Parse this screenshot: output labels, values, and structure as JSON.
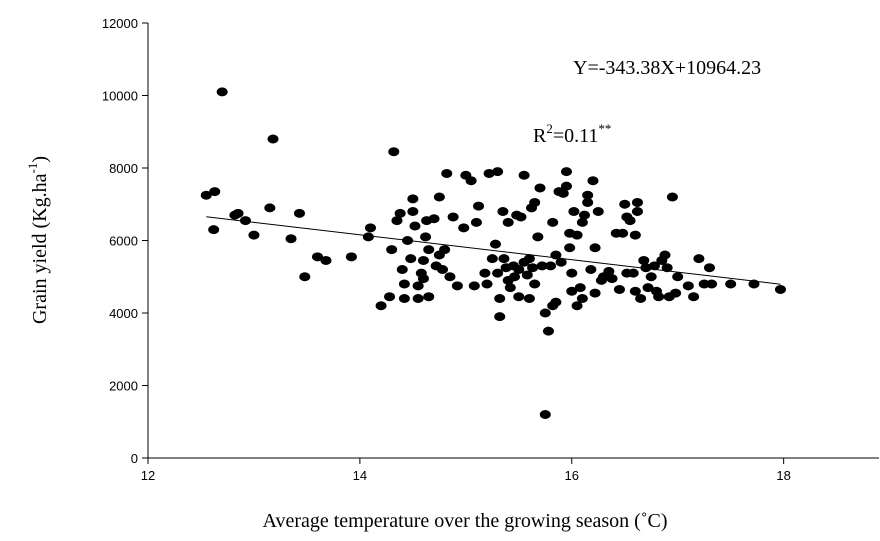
{
  "chart_data": {
    "type": "scatter",
    "equation": "Y=-343.38X+10964.23",
    "r_squared": [
      "R",
      "2",
      "=0.11",
      "**"
    ],
    "y_label": [
      "Grain yield (Kg.ha",
      "-1",
      ")"
    ],
    "x_label": "Average temperature over the growing season (˚C)",
    "color": "#000000",
    "xlim": [
      12,
      18.9
    ],
    "xticks": [
      12,
      14,
      16,
      18
    ],
    "ylim": [
      0,
      12000
    ],
    "yticks": [
      0,
      2000,
      4000,
      6000,
      8000,
      10000,
      12000
    ],
    "x": [
      12.55,
      12.63,
      12.62,
      12.7,
      12.82,
      12.85,
      12.92,
      13.0,
      13.18,
      13.15,
      13.35,
      13.43,
      13.48,
      13.6,
      13.68,
      13.92,
      14.08,
      14.1,
      14.2,
      14.3,
      14.28,
      14.32,
      14.35,
      14.38,
      14.4,
      14.42,
      14.42,
      14.45,
      14.48,
      14.5,
      14.5,
      14.52,
      14.55,
      14.55,
      14.58,
      14.6,
      14.6,
      14.62,
      14.63,
      14.65,
      14.65,
      14.7,
      14.72,
      14.75,
      14.75,
      14.78,
      14.8,
      14.82,
      14.85,
      14.88,
      14.92,
      14.98,
      15.0,
      15.05,
      15.08,
      15.1,
      15.12,
      15.18,
      15.2,
      15.22,
      15.25,
      15.28,
      15.3,
      15.3,
      15.32,
      15.32,
      15.35,
      15.36,
      15.38,
      15.4,
      15.4,
      15.42,
      15.45,
      15.46,
      15.48,
      15.5,
      15.5,
      15.52,
      15.55,
      15.55,
      15.58,
      15.6,
      15.6,
      15.62,
      15.63,
      15.65,
      15.65,
      15.68,
      15.7,
      15.72,
      15.75,
      15.75,
      15.78,
      15.8,
      15.82,
      15.82,
      15.85,
      15.85,
      15.88,
      15.9,
      15.92,
      15.95,
      15.95,
      15.98,
      15.98,
      16.0,
      16.0,
      16.02,
      16.05,
      16.05,
      16.08,
      16.1,
      16.1,
      16.12,
      16.15,
      16.15,
      16.18,
      16.2,
      16.22,
      16.22,
      16.25,
      16.28,
      16.3,
      16.35,
      16.38,
      16.42,
      16.45,
      16.48,
      16.5,
      16.52,
      16.52,
      16.55,
      16.58,
      16.6,
      16.6,
      16.62,
      16.62,
      16.65,
      16.68,
      16.7,
      16.72,
      16.75,
      16.78,
      16.8,
      16.82,
      16.85,
      16.88,
      16.9,
      16.92,
      16.95,
      16.98,
      17.0,
      17.1,
      17.15,
      17.2,
      17.25,
      17.3,
      17.32,
      17.5,
      17.72,
      17.97
    ],
    "values": [
      7250,
      7350,
      6300,
      10100,
      6700,
      6750,
      6550,
      6150,
      8800,
      6900,
      6050,
      6750,
      5000,
      5550,
      5450,
      5550,
      6100,
      6350,
      4200,
      5750,
      4450,
      8450,
      6550,
      6750,
      5200,
      4800,
      4400,
      6000,
      5500,
      7150,
      6800,
      6400,
      4750,
      4400,
      5100,
      5450,
      4950,
      6100,
      6550,
      5750,
      4450,
      6600,
      5300,
      7200,
      5600,
      5200,
      5750,
      7850,
      5000,
      6650,
      4750,
      6350,
      7800,
      7650,
      4750,
      6500,
      6950,
      5100,
      4800,
      7850,
      5500,
      5900,
      7900,
      5100,
      4400,
      3900,
      6800,
      5500,
      5250,
      4900,
      6500,
      4700,
      5300,
      5000,
      6700,
      4450,
      5200,
      6650,
      7800,
      5400,
      5050,
      5500,
      4400,
      6900,
      5250,
      7050,
      4800,
      6100,
      7450,
      5300,
      1200,
      4000,
      3500,
      5300,
      6500,
      4200,
      4300,
      5600,
      7350,
      5400,
      7300,
      7500,
      7900,
      6200,
      5800,
      4600,
      5100,
      6800,
      6150,
      4200,
      4700,
      4400,
      6500,
      6700,
      7250,
      7050,
      5200,
      7650,
      4550,
      5800,
      6800,
      4900,
      5000,
      5150,
      4950,
      6200,
      4650,
      6200,
      7000,
      6650,
      5100,
      6550,
      5100,
      6150,
      4600,
      7050,
      6800,
      4400,
      5450,
      5250,
      4700,
      5000,
      5300,
      4600,
      4450,
      5450,
      5600,
      5250,
      4450,
      7200,
      4550,
      5000,
      4750,
      4450,
      5500,
      4800,
      5250,
      4800,
      4800,
      4800,
      4650
    ],
    "fit": {
      "x": [
        12.55,
        17.97
      ],
      "values": [
        6655,
        4794
      ]
    }
  }
}
